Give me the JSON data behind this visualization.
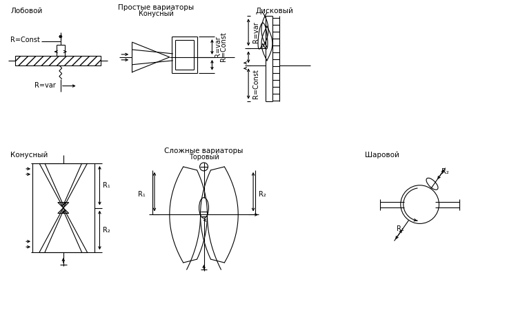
{
  "bg_color": "#ffffff",
  "line_color": "#000000",
  "labels": {
    "lobovoy": "Лобовой",
    "konusny_simple": "Конусный",
    "diskovy": "Дисковый",
    "prostye": "Простые вариаторы",
    "slozhnye": "Сложные вариаторы",
    "konusny_complex": "Конусный",
    "torovy": "Торовый",
    "sharovy": "Шаровой",
    "r_const": "R=Const",
    "r_var": "R=var"
  },
  "figsize": [
    7.64,
    4.57
  ],
  "dpi": 100
}
